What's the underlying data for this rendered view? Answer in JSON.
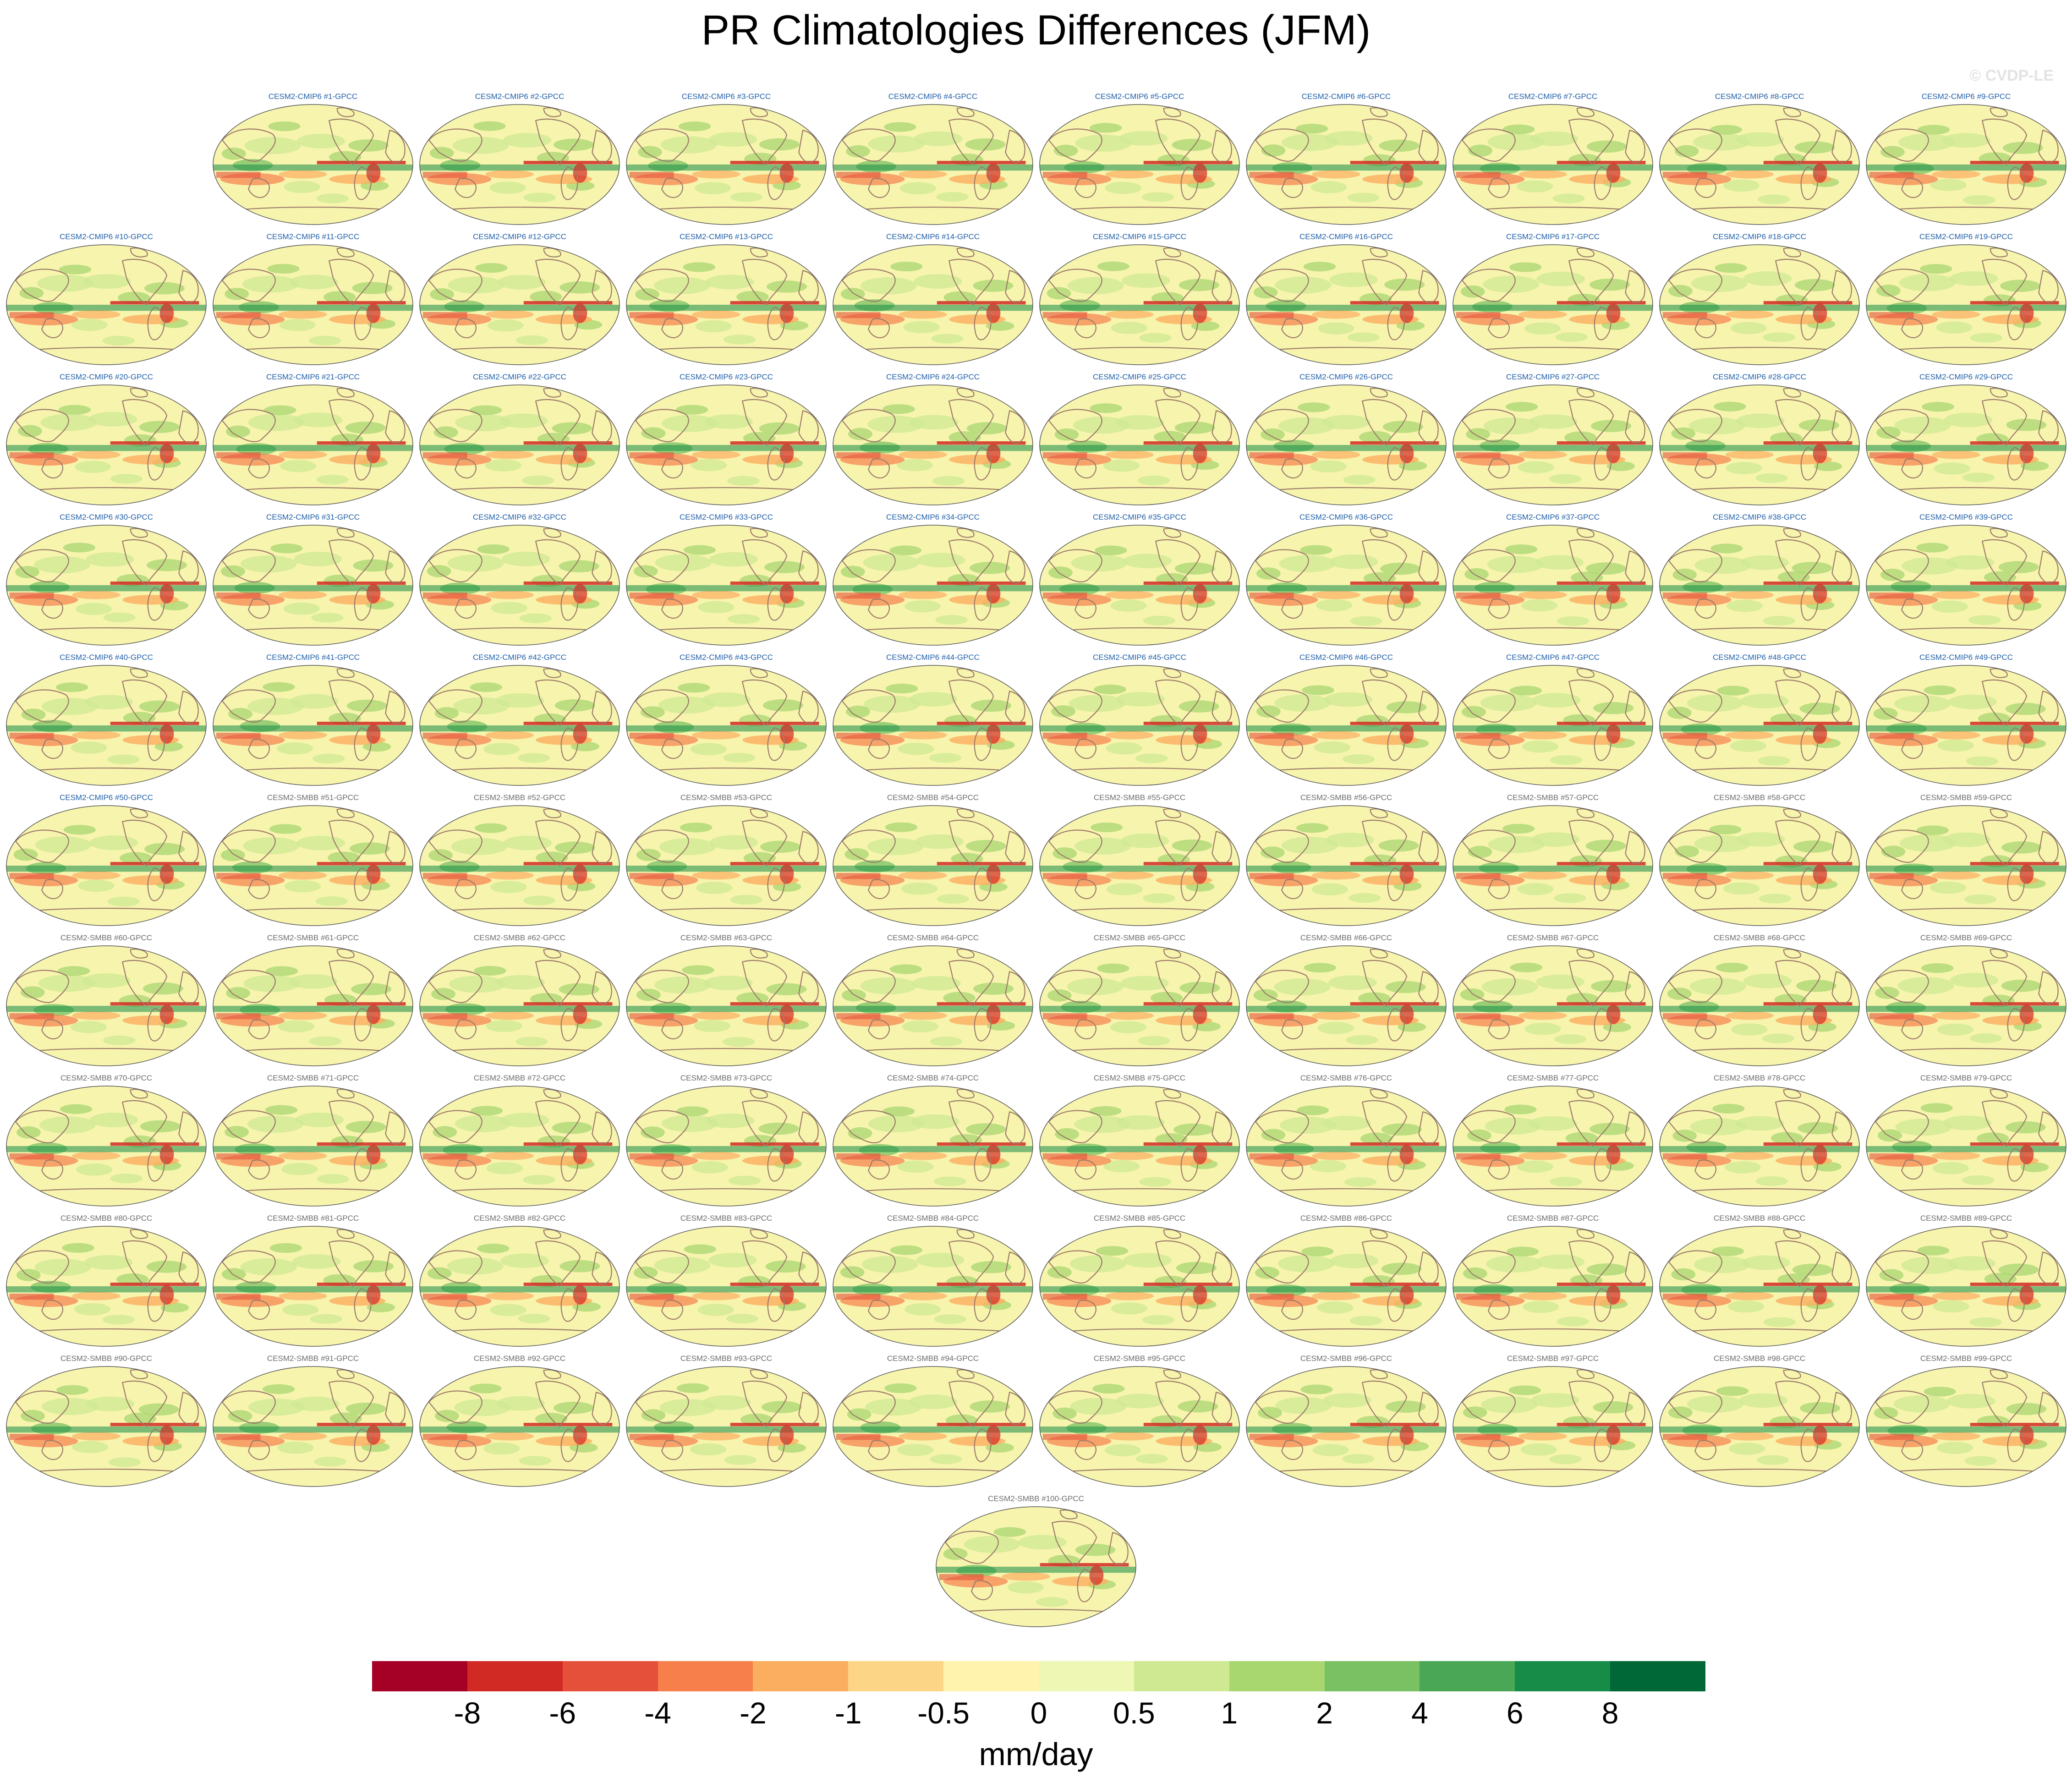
{
  "chart_data": {
    "type": "map-panels",
    "title": "PR Climatologies Differences (JFM)",
    "watermark": "© CVDP-LE",
    "panels": [
      "CESM2-CMIP6 #1-GPCC",
      "CESM2-CMIP6 #2-GPCC",
      "CESM2-CMIP6 #3-GPCC",
      "CESM2-CMIP6 #4-GPCC",
      "CESM2-CMIP6 #5-GPCC",
      "CESM2-CMIP6 #6-GPCC",
      "CESM2-CMIP6 #7-GPCC",
      "CESM2-CMIP6 #8-GPCC",
      "CESM2-CMIP6 #9-GPCC",
      "CESM2-CMIP6 #10-GPCC",
      "CESM2-CMIP6 #11-GPCC",
      "CESM2-CMIP6 #12-GPCC",
      "CESM2-CMIP6 #13-GPCC",
      "CESM2-CMIP6 #14-GPCC",
      "CESM2-CMIP6 #15-GPCC",
      "CESM2-CMIP6 #16-GPCC",
      "CESM2-CMIP6 #17-GPCC",
      "CESM2-CMIP6 #18-GPCC",
      "CESM2-CMIP6 #19-GPCC",
      "CESM2-CMIP6 #20-GPCC",
      "CESM2-CMIP6 #21-GPCC",
      "CESM2-CMIP6 #22-GPCC",
      "CESM2-CMIP6 #23-GPCC",
      "CESM2-CMIP6 #24-GPCC",
      "CESM2-CMIP6 #25-GPCC",
      "CESM2-CMIP6 #26-GPCC",
      "CESM2-CMIP6 #27-GPCC",
      "CESM2-CMIP6 #28-GPCC",
      "CESM2-CMIP6 #29-GPCC",
      "CESM2-CMIP6 #30-GPCC",
      "CESM2-CMIP6 #31-GPCC",
      "CESM2-CMIP6 #32-GPCC",
      "CESM2-CMIP6 #33-GPCC",
      "CESM2-CMIP6 #34-GPCC",
      "CESM2-CMIP6 #35-GPCC",
      "CESM2-CMIP6 #36-GPCC",
      "CESM2-CMIP6 #37-GPCC",
      "CESM2-CMIP6 #38-GPCC",
      "CESM2-CMIP6 #39-GPCC",
      "CESM2-CMIP6 #40-GPCC",
      "CESM2-CMIP6 #41-GPCC",
      "CESM2-CMIP6 #42-GPCC",
      "CESM2-CMIP6 #43-GPCC",
      "CESM2-CMIP6 #44-GPCC",
      "CESM2-CMIP6 #45-GPCC",
      "CESM2-CMIP6 #46-GPCC",
      "CESM2-CMIP6 #47-GPCC",
      "CESM2-CMIP6 #48-GPCC",
      "CESM2-CMIP6 #49-GPCC",
      "CESM2-CMIP6 #50-GPCC",
      "CESM2-SMBB #51-GPCC",
      "CESM2-SMBB #52-GPCC",
      "CESM2-SMBB #53-GPCC",
      "CESM2-SMBB #54-GPCC",
      "CESM2-SMBB #55-GPCC",
      "CESM2-SMBB #56-GPCC",
      "CESM2-SMBB #57-GPCC",
      "CESM2-SMBB #58-GPCC",
      "CESM2-SMBB #59-GPCC",
      "CESM2-SMBB #60-GPCC",
      "CESM2-SMBB #61-GPCC",
      "CESM2-SMBB #62-GPCC",
      "CESM2-SMBB #63-GPCC",
      "CESM2-SMBB #64-GPCC",
      "CESM2-SMBB #65-GPCC",
      "CESM2-SMBB #66-GPCC",
      "CESM2-SMBB #67-GPCC",
      "CESM2-SMBB #68-GPCC",
      "CESM2-SMBB #69-GPCC",
      "CESM2-SMBB #70-GPCC",
      "CESM2-SMBB #71-GPCC",
      "CESM2-SMBB #72-GPCC",
      "CESM2-SMBB #73-GPCC",
      "CESM2-SMBB #74-GPCC",
      "CESM2-SMBB #75-GPCC",
      "CESM2-SMBB #76-GPCC",
      "CESM2-SMBB #77-GPCC",
      "CESM2-SMBB #78-GPCC",
      "CESM2-SMBB #79-GPCC",
      "CESM2-SMBB #80-GPCC",
      "CESM2-SMBB #81-GPCC",
      "CESM2-SMBB #82-GPCC",
      "CESM2-SMBB #83-GPCC",
      "CESM2-SMBB #84-GPCC",
      "CESM2-SMBB #85-GPCC",
      "CESM2-SMBB #86-GPCC",
      "CESM2-SMBB #87-GPCC",
      "CESM2-SMBB #88-GPCC",
      "CESM2-SMBB #89-GPCC",
      "CESM2-SMBB #90-GPCC",
      "CESM2-SMBB #91-GPCC",
      "CESM2-SMBB #92-GPCC",
      "CESM2-SMBB #93-GPCC",
      "CESM2-SMBB #94-GPCC",
      "CESM2-SMBB #95-GPCC",
      "CESM2-SMBB #96-GPCC",
      "CESM2-SMBB #97-GPCC",
      "CESM2-SMBB #98-GPCC",
      "CESM2-SMBB #99-GPCC",
      "CESM2-SMBB #100-GPCC"
    ],
    "colorbar": {
      "units": "mm/day",
      "ticks": [
        "-8",
        "-6",
        "-4",
        "-2",
        "-1",
        "-0.5",
        "0",
        "0.5",
        "1",
        "2",
        "4",
        "6",
        "8"
      ],
      "colors": [
        "#a50026",
        "#d12a25",
        "#e5503a",
        "#f67f4b",
        "#fcae60",
        "#fdd586",
        "#fff3ad",
        "#eef7b4",
        "#cfe993",
        "#a8d770",
        "#79c163",
        "#49a755",
        "#178c48",
        "#006837"
      ]
    },
    "colors": {
      "cmip6_label": "#1f5ea8",
      "smbb_label": "#6d6d6d",
      "ocean_fill": "#f7f4ae",
      "coastline": "#9c7a68",
      "panel_border": "#555555"
    }
  }
}
